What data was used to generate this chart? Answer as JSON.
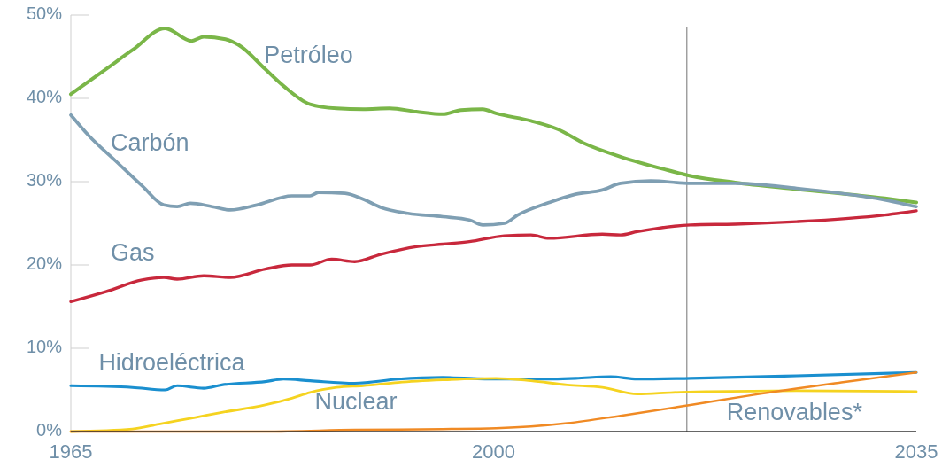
{
  "chart_data": {
    "type": "line",
    "xlim": [
      1965,
      2035
    ],
    "xticks": [
      1965,
      2000,
      2035
    ],
    "ylim": [
      0,
      50
    ],
    "yticks": [
      {
        "value": 0,
        "label": "0%"
      },
      {
        "value": 10,
        "label": "10%"
      },
      {
        "value": 20,
        "label": "20%"
      },
      {
        "value": 30,
        "label": "30%"
      },
      {
        "value": 40,
        "label": "40%"
      },
      {
        "value": 50,
        "label": "50%"
      }
    ],
    "grid": false,
    "legend": false,
    "marker": "none",
    "line_style": "solid",
    "ref_lines": [
      {
        "axis": "x",
        "value": 2016,
        "label": null,
        "color": "#8a8a8a"
      }
    ],
    "series": [
      {
        "name": "Petróleo",
        "color": "#7ab648",
        "x": [
          1965,
          1967.9,
          1970.1,
          1972.8,
          1975.0,
          1976.0,
          1977.8,
          1978.9,
          1981.1,
          1982.6,
          1984.8,
          1987.0,
          1989.2,
          1991.4,
          1993.6,
          1995.8,
          1997.3,
          1999.1,
          2000.2,
          2003.1,
          2005.3,
          2007.5,
          2010.5,
          2014.1,
          2016.3,
          2020.0,
          2025.1,
          2032.4,
          2035
        ],
        "values": [
          40.5,
          43.5,
          45.8,
          48.4,
          46.9,
          47.4,
          47.1,
          46.4,
          43.5,
          41.5,
          39.3,
          38.8,
          38.7,
          38.8,
          38.4,
          38.1,
          38.6,
          38.7,
          38.2,
          37.3,
          36.3,
          34.6,
          33.0,
          31.5,
          30.7,
          29.9,
          29.1,
          28.0,
          27.5
        ]
      },
      {
        "name": "Carbón",
        "color": "#7f9fb3",
        "x": [
          1965,
          1966.5,
          1968.7,
          1970.9,
          1972.7,
          1973.8,
          1974.9,
          1976.7,
          1978.2,
          1980.4,
          1983.3,
          1984.8,
          1985.5,
          1987.7,
          1989.2,
          1990.7,
          1992.9,
          1995.8,
          1998.0,
          1999.1,
          2000.9,
          2002.0,
          2004.6,
          2006.8,
          2009.0,
          2010.5,
          2013.0,
          2016.3,
          2020.0,
          2025.1,
          2032.4,
          2035
        ],
        "values": [
          38.0,
          35.5,
          32.5,
          29.5,
          27.2,
          27.0,
          27.4,
          27.0,
          26.6,
          27.2,
          28.3,
          28.3,
          28.7,
          28.6,
          27.9,
          26.9,
          26.2,
          25.8,
          25.4,
          24.8,
          25.0,
          26.0,
          27.5,
          28.5,
          29.0,
          29.8,
          30.1,
          29.8,
          29.8,
          29.2,
          27.8,
          27.0
        ]
      },
      {
        "name": "Gas",
        "color": "#c8283c",
        "x": [
          1965,
          1967.9,
          1970.9,
          1972.7,
          1973.8,
          1976.0,
          1978.2,
          1981.1,
          1983.3,
          1984.8,
          1986.6,
          1988.5,
          1990.7,
          1993.6,
          1995.8,
          1998.0,
          2000.9,
          2003.1,
          2004.6,
          2009.0,
          2010.5,
          2011.9,
          2016.3,
          2020.0,
          2025.1,
          2032.4,
          2035
        ],
        "values": [
          15.6,
          16.8,
          18.2,
          18.5,
          18.3,
          18.7,
          18.5,
          19.5,
          20.0,
          20.0,
          20.7,
          20.4,
          21.3,
          22.2,
          22.5,
          22.8,
          23.5,
          23.6,
          23.2,
          23.7,
          23.6,
          24.0,
          24.8,
          24.9,
          25.2,
          26.0,
          26.5
        ]
      },
      {
        "name": "Hidroeléctrica",
        "color": "#1a8fcf",
        "x": [
          1965,
          1970.1,
          1972.8,
          1973.8,
          1976.0,
          1977.5,
          1981.1,
          1982.6,
          1984.8,
          1988.5,
          1992.1,
          1995.8,
          2000.2,
          2004.6,
          2006.8,
          2009.7,
          2011.9,
          2016.3,
          2025.1,
          2035
        ],
        "values": [
          5.5,
          5.3,
          5.0,
          5.5,
          5.2,
          5.6,
          6.0,
          6.3,
          6.1,
          5.8,
          6.3,
          6.5,
          6.3,
          6.3,
          6.4,
          6.6,
          6.3,
          6.4,
          6.7,
          7.1
        ]
      },
      {
        "name": "Nuclear",
        "color": "#f5d320",
        "x": [
          1965,
          1970.1,
          1972.3,
          1975.3,
          1977.5,
          1981.1,
          1983.3,
          1984.8,
          1987.0,
          1989.2,
          1992.1,
          1995.8,
          2000.2,
          2003.1,
          2006.1,
          2009.0,
          2011.9,
          2014.9,
          2017.8,
          2025.1,
          2035
        ],
        "values": [
          0.0,
          0.3,
          0.9,
          1.7,
          2.3,
          3.2,
          4.0,
          4.7,
          5.3,
          5.5,
          5.9,
          6.2,
          6.4,
          6.1,
          5.6,
          5.3,
          4.5,
          4.7,
          4.8,
          4.9,
          4.8
        ]
      },
      {
        "name": "Renovables*",
        "color": "#f08a24",
        "x": [
          1965,
          1981.1,
          1988.5,
          1995.8,
          2000.2,
          2003.1,
          2006.1,
          2010.5,
          2016.3,
          2021.5,
          2028.8,
          2035
        ],
        "values": [
          0.0,
          0.0,
          0.2,
          0.3,
          0.4,
          0.6,
          1.0,
          1.9,
          3.2,
          4.4,
          5.9,
          7.1
        ]
      }
    ]
  }
}
